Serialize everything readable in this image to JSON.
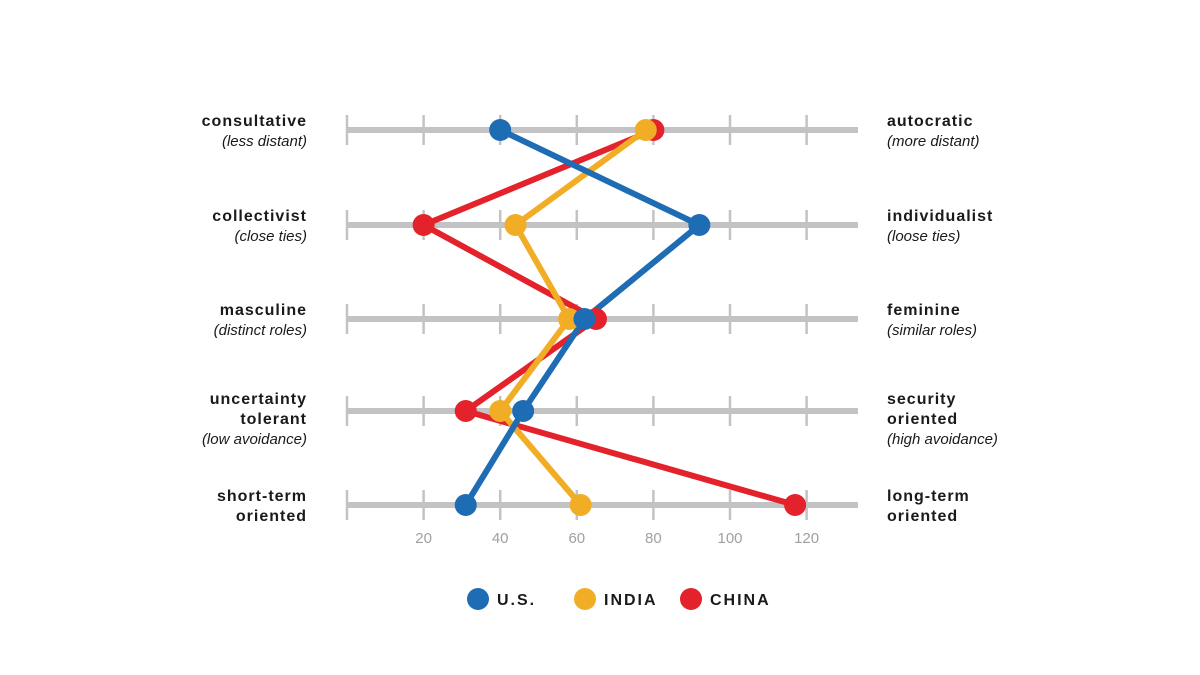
{
  "chart_data": {
    "type": "line",
    "x_ticks": [
      20,
      40,
      60,
      80,
      100,
      120
    ],
    "xlim": [
      0,
      134
    ],
    "dimensions": [
      {
        "left": [
          "consultative"
        ],
        "left_sub": "(less distant)",
        "right": [
          "autocratic"
        ],
        "right_sub": "(more distant)"
      },
      {
        "left": [
          "collectivist"
        ],
        "left_sub": "(close ties)",
        "right": [
          "individualist"
        ],
        "right_sub": "(loose ties)"
      },
      {
        "left": [
          "masculine"
        ],
        "left_sub": "(distinct roles)",
        "right": [
          "feminine"
        ],
        "right_sub": "(similar roles)"
      },
      {
        "left": [
          "uncertainty",
          "tolerant"
        ],
        "left_sub": "(low avoidance)",
        "right": [
          "security",
          "oriented"
        ],
        "right_sub": "(high avoidance)"
      },
      {
        "left": [
          "short-term",
          "oriented"
        ],
        "left_sub": "",
        "right": [
          "long-term",
          "oriented"
        ],
        "right_sub": ""
      }
    ],
    "series": [
      {
        "name": "U.S.",
        "color": "#1e6cb4",
        "values": [
          40,
          92,
          62,
          46,
          31
        ]
      },
      {
        "name": "INDIA",
        "color": "#f2ad26",
        "values": [
          78,
          44,
          58,
          40,
          61
        ]
      },
      {
        "name": "CHINA",
        "color": "#e3222b",
        "values": [
          80,
          20,
          65,
          31,
          117
        ]
      }
    ],
    "legend_position": "bottom-center"
  }
}
